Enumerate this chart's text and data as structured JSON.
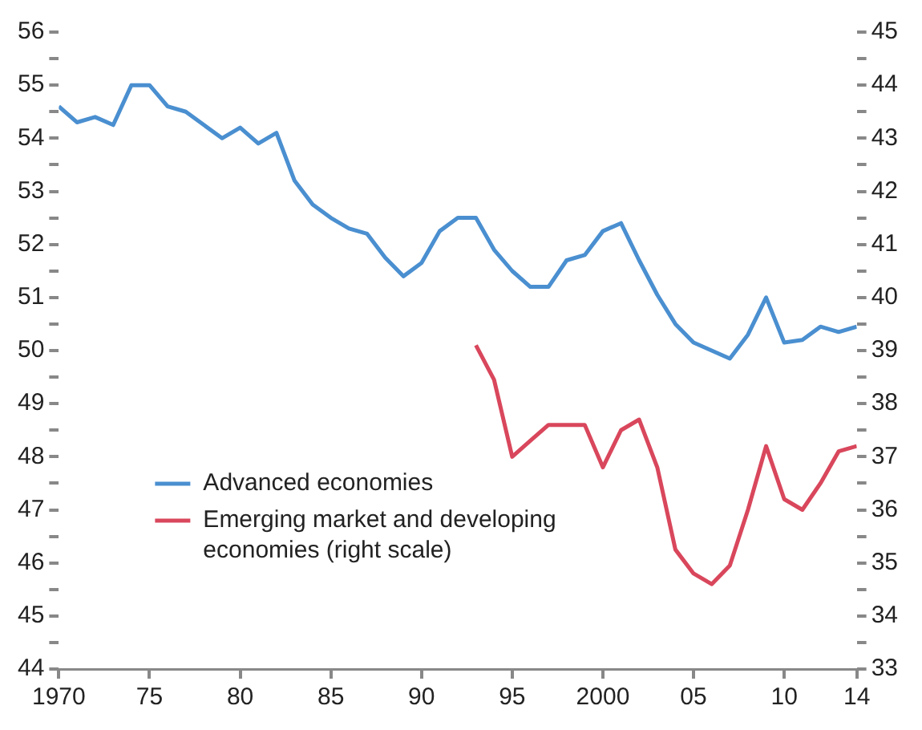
{
  "chart_data": {
    "type": "line",
    "xlim": [
      1970,
      2014
    ],
    "xticks": [
      {
        "value": 1970,
        "label": "1970"
      },
      {
        "value": 1975,
        "label": "75"
      },
      {
        "value": 1980,
        "label": "80"
      },
      {
        "value": 1985,
        "label": "85"
      },
      {
        "value": 1990,
        "label": "90"
      },
      {
        "value": 1995,
        "label": "95"
      },
      {
        "value": 2000,
        "label": "2000"
      },
      {
        "value": 2005,
        "label": "05"
      },
      {
        "value": 2010,
        "label": "10"
      },
      {
        "value": 2014,
        "label": "14"
      }
    ],
    "ylim": [
      44,
      56
    ],
    "yticks": [
      44,
      {
        "value": 44.5,
        "label": null
      },
      45,
      {
        "value": 45.5,
        "label": null
      },
      46,
      {
        "value": 46.5,
        "label": null
      },
      47,
      {
        "value": 47.5,
        "label": null
      },
      48,
      {
        "value": 48.5,
        "label": null
      },
      49,
      {
        "value": 49.5,
        "label": null
      },
      50,
      {
        "value": 50.5,
        "label": null
      },
      51,
      {
        "value": 51.5,
        "label": null
      },
      52,
      {
        "value": 52.5,
        "label": null
      },
      53,
      {
        "value": 53.5,
        "label": null
      },
      54,
      {
        "value": 54.5,
        "label": null
      },
      55,
      {
        "value": 55.5,
        "label": null
      },
      56
    ],
    "y2lim": [
      33,
      45
    ],
    "y2ticks": [
      33,
      {
        "value": 33.5,
        "label": null
      },
      34,
      {
        "value": 34.5,
        "label": null
      },
      35,
      {
        "value": 35.5,
        "label": null
      },
      36,
      {
        "value": 36.5,
        "label": null
      },
      37,
      {
        "value": 37.5,
        "label": null
      },
      38,
      {
        "value": 38.5,
        "label": null
      },
      39,
      {
        "value": 39.5,
        "label": null
      },
      40,
      {
        "value": 40.5,
        "label": null
      },
      41,
      {
        "value": 41.5,
        "label": null
      },
      42,
      {
        "value": 42.5,
        "label": null
      },
      43,
      {
        "value": 43.5,
        "label": null
      },
      44,
      {
        "value": 44.5,
        "label": null
      },
      45
    ],
    "grid": false,
    "legend": "bottom left",
    "series": [
      {
        "name": "Advanced economies",
        "color": "#4a8fd0",
        "x": [
          1970,
          1971,
          1972,
          1973,
          1974,
          1975,
          1976,
          1977,
          1978,
          1979,
          1980,
          1981,
          1982,
          1983,
          1984,
          1985,
          1986,
          1987,
          1988,
          1989,
          1990,
          1991,
          1992,
          1993,
          1994,
          1995,
          1996,
          1997,
          1998,
          1999,
          2000,
          2001,
          2002,
          2003,
          2004,
          2005,
          2006,
          2007,
          2008,
          2009,
          2010,
          2011,
          2012,
          2013,
          2014
        ],
        "values": [
          54.6,
          54.3,
          54.4,
          54.25,
          55.0,
          55.0,
          54.6,
          54.5,
          54.25,
          54.0,
          54.2,
          53.9,
          54.1,
          53.2,
          52.75,
          52.5,
          52.3,
          52.2,
          51.75,
          51.4,
          51.65,
          52.25,
          52.5,
          52.5,
          51.9,
          51.5,
          51.2,
          51.2,
          51.7,
          51.8,
          52.25,
          52.4,
          51.7,
          51.05,
          50.5,
          50.15,
          50.0,
          49.85,
          50.3,
          51.0,
          50.15,
          50.2,
          50.45,
          50.35,
          50.45
        ]
      },
      {
        "name": "Emerging market and developing economies (right scale)",
        "color": "#d9475c",
        "axis": "y2",
        "x": [
          1993,
          1994,
          1995,
          1996,
          1997,
          1998,
          1999,
          2000,
          2001,
          2002,
          2003,
          2004,
          2005,
          2006,
          2007,
          2008,
          2009,
          2010,
          2011,
          2012,
          2013,
          2014
        ],
        "values": [
          39.1,
          38.45,
          37.0,
          37.3,
          37.6,
          37.6,
          37.6,
          36.8,
          37.5,
          37.7,
          36.8,
          35.25,
          34.8,
          34.6,
          34.95,
          36.0,
          37.2,
          36.2,
          36.0,
          36.5,
          37.1,
          37.2
        ]
      }
    ]
  }
}
